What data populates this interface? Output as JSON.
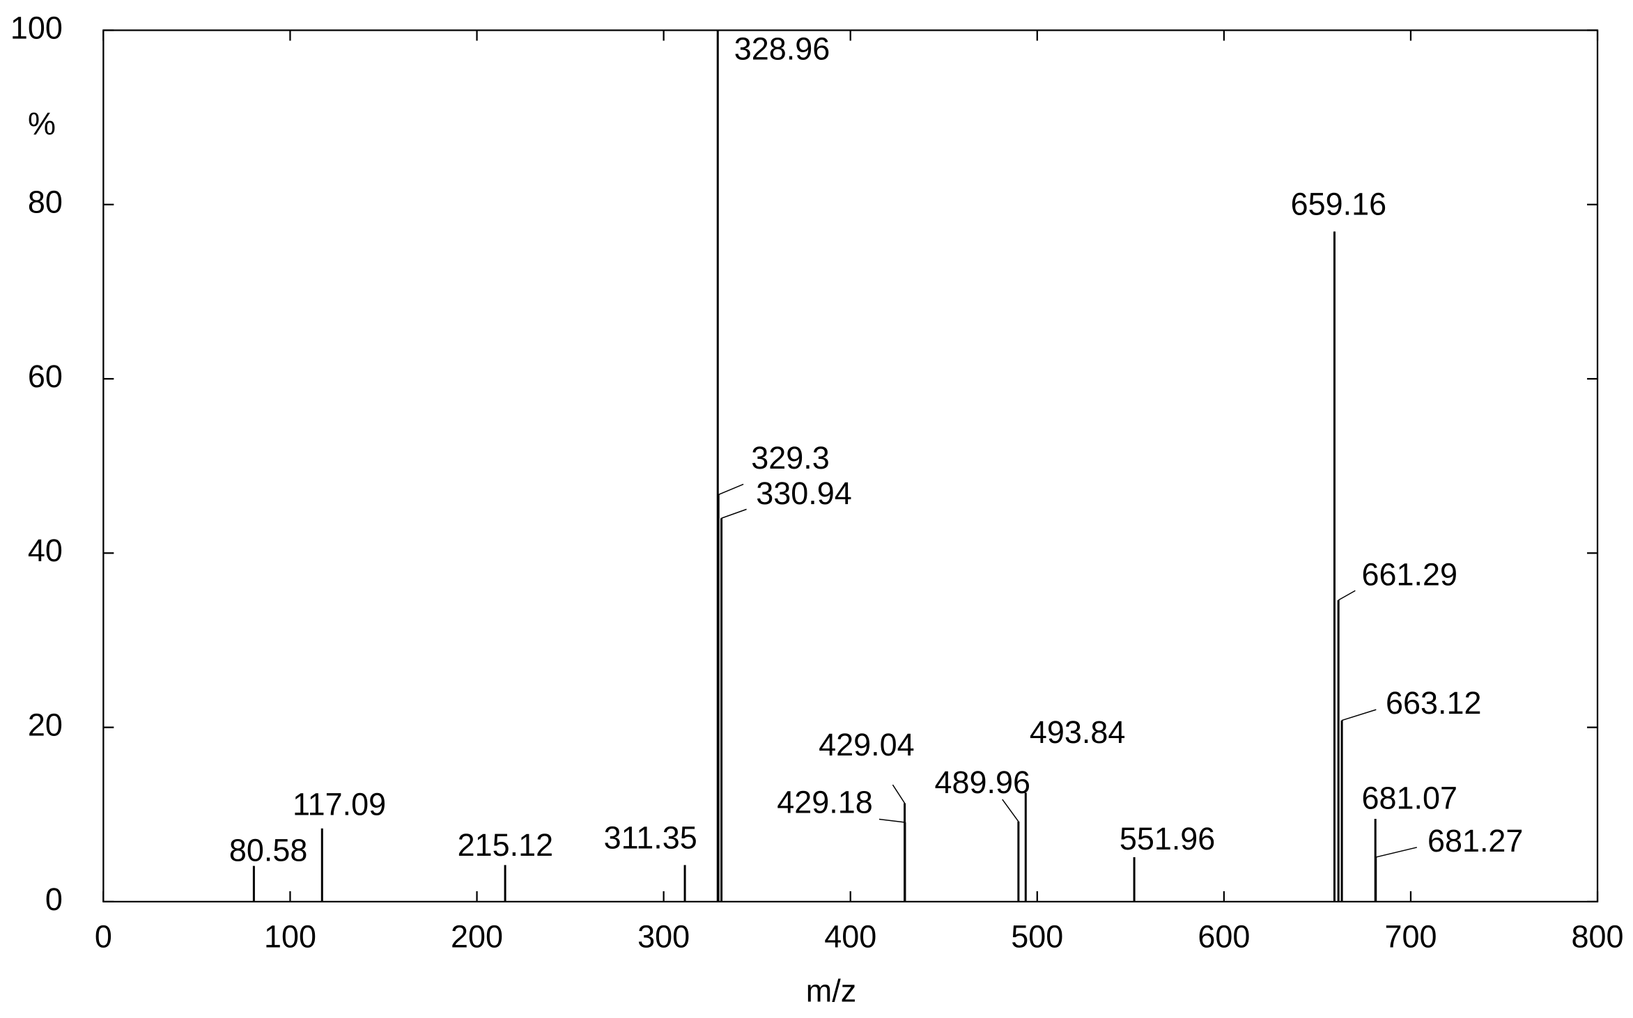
{
  "chart_data": {
    "type": "stem",
    "x_label": "m/z",
    "y_label": "%",
    "x": [
      80.58,
      117.09,
      215.12,
      311.35,
      328.96,
      329.3,
      330.94,
      429.04,
      429.18,
      489.96,
      493.84,
      551.96,
      659.16,
      661.29,
      663.12,
      681.07,
      681.27
    ],
    "values": [
      4.1,
      8.4,
      4.2,
      4.2,
      100,
      46.7,
      44.0,
      11.3,
      9.1,
      9.2,
      12.5,
      5.1,
      76.9,
      34.6,
      20.8,
      9.5,
      5.1
    ],
    "color": "#000000",
    "xlim": [
      0,
      800
    ],
    "xticks": [
      0,
      100,
      200,
      300,
      400,
      500,
      600,
      700,
      800
    ],
    "ylim": [
      0,
      100
    ],
    "yticks": [
      0,
      20,
      40,
      60,
      80,
      100
    ]
  }
}
